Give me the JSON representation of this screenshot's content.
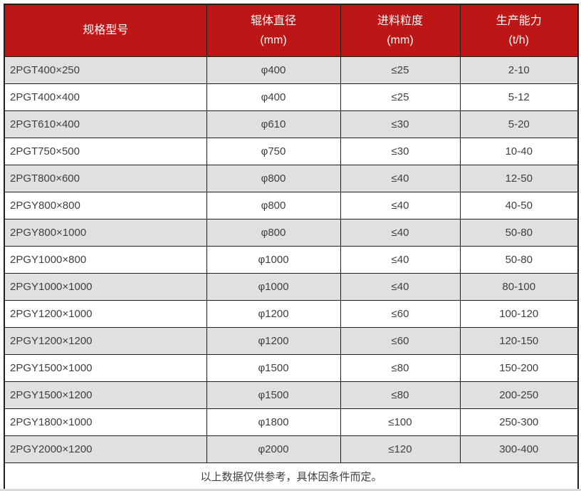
{
  "colors": {
    "header_bg": "#bc1616",
    "row_alt_bg": "#e0e0e0",
    "border": "#1e1e1e",
    "text": "#3f3f3f",
    "header_text": "#ffffff"
  },
  "table": {
    "columns": [
      {
        "label": "规格型号",
        "sub": ""
      },
      {
        "label": "辊体直径",
        "sub": "(mm)"
      },
      {
        "label": "进料粒度",
        "sub": "(mm)"
      },
      {
        "label": "生产能力",
        "sub": "(t/h)"
      }
    ],
    "rows": [
      [
        "2PGT400×250",
        "φ400",
        "≤25",
        "2-10"
      ],
      [
        "2PGT400×400",
        "φ400",
        "≤25",
        "5-12"
      ],
      [
        "2PGT610×400",
        "φ610",
        "≤30",
        "5-20"
      ],
      [
        "2PGT750×500",
        "φ750",
        "≤30",
        "10-40"
      ],
      [
        "2PGT800×600",
        "φ800",
        "≤40",
        "12-50"
      ],
      [
        "2PGY800×800",
        "φ800",
        "≤40",
        "40-50"
      ],
      [
        "2PGY800×1000",
        "φ800",
        "≤40",
        "50-80"
      ],
      [
        "2PGY1000×800",
        "φ1000",
        "≤40",
        "50-80"
      ],
      [
        "2PGY1000×1000",
        "φ1000",
        "≤40",
        "80-100"
      ],
      [
        "2PGY1200×1000",
        "φ1200",
        "≤60",
        "100-120"
      ],
      [
        "2PGY1200×1200",
        "φ1200",
        "≤60",
        "120-150"
      ],
      [
        "2PGY1500×1000",
        "φ1500",
        "≤80",
        "150-200"
      ],
      [
        "2PGY1500×1200",
        "φ1500",
        "≤80",
        "200-250"
      ],
      [
        "2PGY1800×1000",
        "φ1800",
        "≤100",
        "250-300"
      ],
      [
        "2PGY2000×1200",
        "φ2000",
        "≤120",
        "300-400"
      ]
    ],
    "footnote": "以上数据仅供参考，具体因条件而定。"
  }
}
